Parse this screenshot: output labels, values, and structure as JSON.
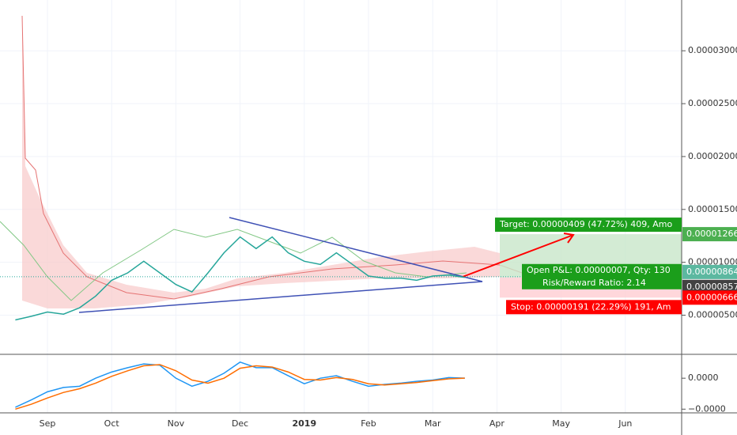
{
  "chart_data": [
    {
      "type": "line",
      "categories": [
        null,
        null,
        "Sep",
        null,
        null,
        null,
        "Oct",
        null,
        null,
        null,
        "Nov",
        null,
        null,
        null,
        "Dec",
        null,
        null,
        null,
        "2019",
        null,
        null,
        null,
        "Feb",
        null,
        null,
        null,
        "Mar",
        null,
        null,
        null,
        "Apr",
        null,
        null,
        null,
        "May",
        null,
        null,
        null,
        "Jun",
        null,
        null
      ],
      "series": [
        {
          "color": "#26a69a",
          "values": [
            4.55e-06,
            4.9e-06,
            5.3e-06,
            5.1e-06,
            5.7e-06,
            6.8e-06,
            8.3e-06,
            9e-06,
            1.01e-05,
            9e-06,
            7.9e-06,
            7.2e-06,
            9e-06,
            1.09e-05,
            1.24e-05,
            1.13e-05,
            1.24e-05,
            1.09e-05,
            1.01e-05,
            9.8e-06,
            1.09e-05,
            9.8e-06,
            8.7e-06,
            8.5e-06,
            8.5e-06,
            8.3e-06,
            8.7e-06,
            8.8e-06,
            8.57e-06,
            null,
            null,
            null,
            null,
            null,
            null,
            null,
            null,
            null,
            null,
            null,
            null
          ]
        }
      ],
      "ylim": [
        1.3e-06,
        3.48e-05
      ],
      "yticks": [
        {
          "value": 5e-06,
          "label": "0.00000500"
        },
        {
          "value": 1e-05,
          "label": "0.00001000"
        },
        {
          "value": 1.5e-05,
          "label": "0.00001500"
        },
        {
          "value": 2e-05,
          "label": "0.00002000"
        },
        {
          "value": 2.5e-05,
          "label": "0.00002500"
        },
        {
          "value": 3e-05,
          "label": "0.00003000"
        }
      ],
      "grid": true,
      "last_price": 8.64e-06,
      "position": {
        "entry": 8.57e-06,
        "target": 1.266e-05,
        "stop": 6.66e-06,
        "target_label": "Target: 0.00000409 (47.72%) 409, Amo",
        "pnl_label": "Open P&L: 0.00000007, Qty: 130",
        "ratio_label": "Risk/Reward Ratio: 2.14",
        "stop_label": "Stop: 0.00000191 (22.29%) 191, Am"
      }
    },
    {
      "type": "line",
      "series": [
        {
          "color": "#2196f3",
          "values": [
            -4.7e-07,
            -3.5e-07,
            -2.2e-07,
            -1.5e-07,
            -1.3e-07,
            0,
            1e-07,
            1.7e-07,
            2.3e-07,
            2.1e-07,
            0,
            -1.3e-07,
            -5e-08,
            8e-08,
            2.6e-07,
            1.7e-07,
            1.7e-07,
            4e-08,
            -9e-08,
            0,
            4e-08,
            -5e-08,
            -1.3e-07,
            -1e-07,
            -8e-08,
            -5e-08,
            -3e-08,
            1e-08,
            0
          ]
        },
        {
          "color": "#ff6d00",
          "values": [
            -5e-07,
            -4.2e-07,
            -3.2e-07,
            -2.3e-07,
            -1.7e-07,
            -8e-08,
            3e-08,
            1.2e-07,
            2e-07,
            2.2e-07,
            1.2e-07,
            -3e-08,
            -8e-08,
            0,
            1.6e-07,
            2e-07,
            1.8e-07,
            1e-07,
            -2e-08,
            -3e-08,
            1e-08,
            -2e-08,
            -9e-08,
            -1.1e-07,
            -9e-08,
            -7e-08,
            -4e-08,
            -1e-08,
            0
          ]
        }
      ],
      "ylim": [
        -5.6e-07,
        3.6e-07
      ],
      "yticks": [
        {
          "value": 0,
          "label": "0.0000"
        },
        {
          "value": -5e-07,
          "label": "−0.0000"
        }
      ]
    }
  ]
}
